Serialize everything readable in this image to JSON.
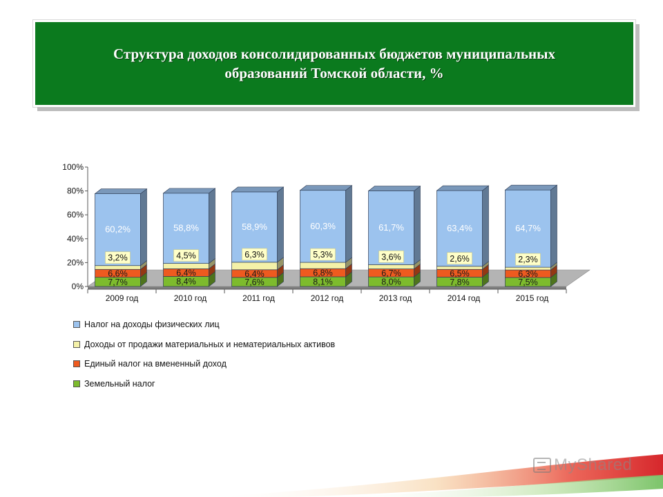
{
  "header": {
    "title": "Структура доходов консолидированных бюджетов муниципальных образований Томской области, %"
  },
  "chart_data": {
    "type": "bar",
    "stacked": true,
    "percent_stacked": true,
    "three_d": true,
    "categories": [
      "2009 год",
      "2010 год",
      "2011 год",
      "2012 год",
      "2013 год",
      "2014 год",
      "2015 год"
    ],
    "y_ticks": [
      "0%",
      "20%",
      "40%",
      "60%",
      "80%",
      "100%"
    ],
    "ylim": [
      0,
      100
    ],
    "series": [
      {
        "name": "Земельный налог",
        "color": "#7dbb2d",
        "values": [
          7.7,
          8.4,
          7.6,
          8.1,
          8.0,
          7.8,
          7.5
        ],
        "labels": [
          "7,7%",
          "8,4%",
          "7,6%",
          "8,1%",
          "8,0%",
          "7,8%",
          "7,5%"
        ]
      },
      {
        "name": "Единый налог на вмененный доход",
        "color": "#ee5a1f",
        "values": [
          6.6,
          6.4,
          6.4,
          6.8,
          6.7,
          6.5,
          6.3
        ],
        "labels": [
          "6,6%",
          "6,4%",
          "6,4%",
          "6,8%",
          "6,7%",
          "6,5%",
          "6,3%"
        ]
      },
      {
        "name": "Доходы от продажи материальных и нематериальных активов",
        "color": "#f4f1a8",
        "values": [
          3.2,
          4.5,
          6.3,
          5.3,
          3.6,
          2.6,
          2.3
        ],
        "labels": [
          "3,2%",
          "4,5%",
          "6,3%",
          "5,3%",
          "3,6%",
          "2,6%",
          "2,3%"
        ]
      },
      {
        "name": "Налог на доходы физических лиц",
        "color": "#9cc3ee",
        "values": [
          60.2,
          58.8,
          58.9,
          60.3,
          61.7,
          63.4,
          64.7
        ],
        "labels": [
          "60,2%",
          "58,8%",
          "58,9%",
          "60,3%",
          "61,7%",
          "63,4%",
          "64,7%"
        ]
      }
    ],
    "legend": {
      "position": "bottom",
      "order": [
        "Налог на доходы физических лиц",
        "Доходы от продажи материальных и нематериальных активов",
        "Единый налог на вмененный доход",
        "Земельный налог"
      ]
    }
  },
  "watermark": {
    "brand": "MyShared"
  }
}
